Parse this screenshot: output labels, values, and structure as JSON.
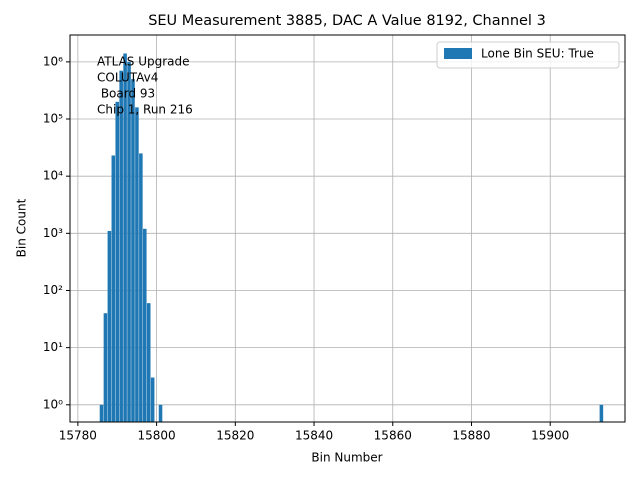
{
  "chart_data": {
    "type": "bar",
    "title": "SEU Measurement 3885, DAC A Value 8192, Channel 3",
    "x_label": "Bin Number",
    "y_label": "Bin Count",
    "annotation": [
      "ATLAS Upgrade",
      "COLUTAv4",
      " Board 93",
      "Chip 1, Run 216"
    ],
    "x": [
      15786,
      15787,
      15788,
      15789,
      15790,
      15791,
      15792,
      15793,
      15794,
      15795,
      15796,
      15797,
      15798,
      15799,
      15801,
      15913
    ],
    "series": [
      {
        "name": "Lone Bin SEU: True",
        "color": "#1f77b4",
        "values": [
          1,
          40,
          1100,
          23000,
          200000,
          700000,
          1400000,
          1000000,
          500000,
          160000,
          25000,
          1200,
          60,
          3,
          1,
          1
        ]
      }
    ],
    "xlim": [
      15778,
      15919
    ],
    "xticks": [
      15780,
      15800,
      15820,
      15840,
      15860,
      15880,
      15900
    ],
    "ylim": [
      0.5,
      2950000
    ],
    "log_y": true,
    "yticks": [
      {
        "value": 1,
        "label": "10⁰"
      },
      {
        "value": 10,
        "label": "10¹"
      },
      {
        "value": 100,
        "label": "10²"
      },
      {
        "value": 1000,
        "label": "10³"
      },
      {
        "value": 10000,
        "label": "10⁴"
      },
      {
        "value": 100000,
        "label": "10⁵"
      },
      {
        "value": 1000000,
        "label": "10⁶"
      }
    ],
    "grid": true,
    "legend": "upper right"
  }
}
